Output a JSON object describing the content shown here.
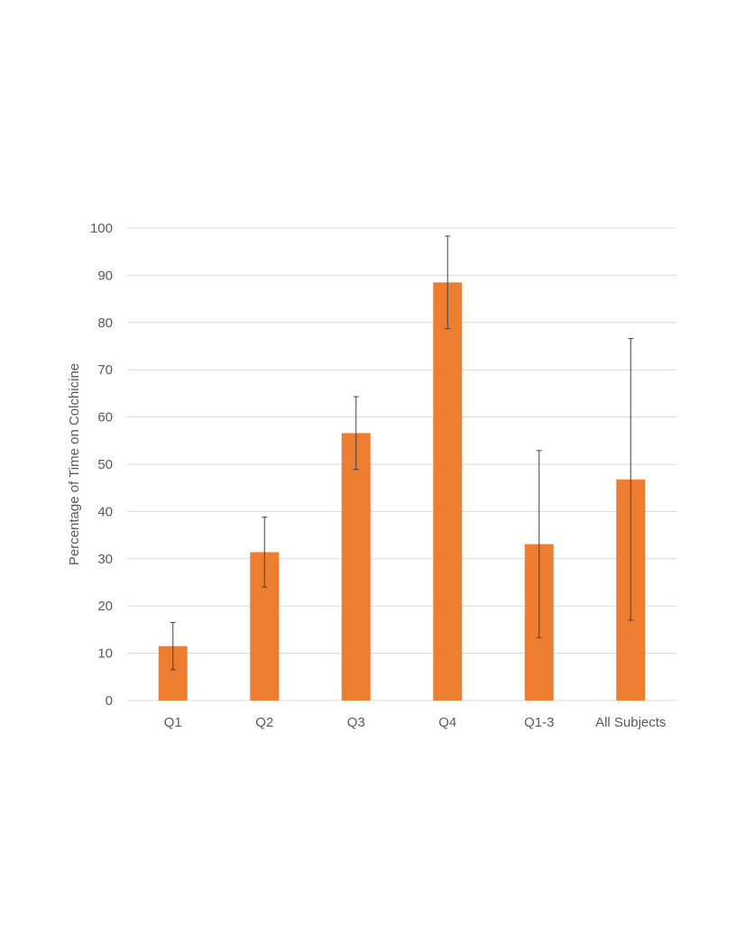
{
  "chart_data": {
    "type": "bar",
    "title": "",
    "xlabel": "",
    "ylabel": "Percentage of Time on Colchicine",
    "categories": [
      "Q1",
      "Q2",
      "Q3",
      "Q4",
      "Q1-3",
      "All Subjects"
    ],
    "values": [
      11.5,
      31.4,
      56.6,
      88.5,
      33.1,
      46.8
    ],
    "error": [
      5,
      7.4,
      7.7,
      9.8,
      19.8,
      29.8
    ],
    "ylim": [
      0,
      100
    ],
    "yticks": [
      0,
      10,
      20,
      30,
      40,
      50,
      60,
      70,
      80,
      90,
      100
    ],
    "grid": true,
    "legend": "none",
    "bar_color": "#ED7D31",
    "grid_color": "#D9D9D9",
    "errorbar_color": "#404040"
  }
}
